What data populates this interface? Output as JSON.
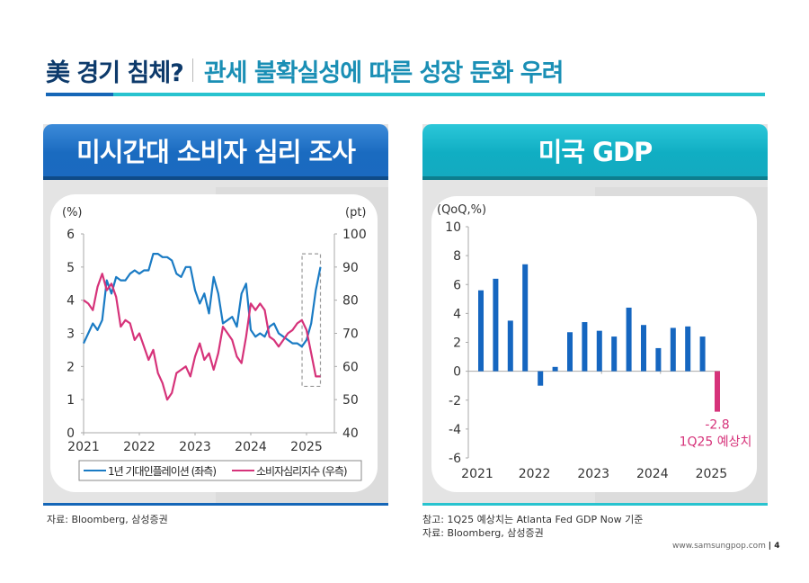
{
  "header": {
    "title_main": "美 경기 침체?",
    "title_sub": "관세 불확실성에 따른 성장 둔화 우려"
  },
  "colors": {
    "navy": "#0d3a6b",
    "teal": "#1a8fb5",
    "blue_line": "#1a7bc4",
    "pink_line": "#d6337a",
    "bar_blue": "#1566c0",
    "bar_pink": "#d6337a"
  },
  "panels": [
    {
      "title": "미시간대 소비자 심리 조사",
      "source": "자료: Bloomberg, 삼성증권"
    },
    {
      "title": "미국 GDP",
      "note": "참고: 1Q25 예상치는 Atlanta Fed GDP Now 기준",
      "source": "자료: Bloomberg, 삼성증권"
    }
  ],
  "footer": {
    "url": "www.samsungpop.com",
    "page": "4"
  },
  "chart_data": [
    {
      "type": "line",
      "title": "미시간대 소비자 심리 조사",
      "y_left_unit": "(%)",
      "y_right_unit": "(pt)",
      "ylim_left": [
        0,
        6
      ],
      "ylim_right": [
        40,
        100
      ],
      "yticks_left": [
        "0",
        "1",
        "2",
        "3",
        "4",
        "5",
        "6"
      ],
      "yticks_right": [
        "40",
        "50",
        "60",
        "70",
        "80",
        "90",
        "100"
      ],
      "xlim": [
        2021.0,
        2025.75
      ],
      "xticks": [
        "2021",
        "2022",
        "2023",
        "2024",
        "2025"
      ],
      "grid": false,
      "highlight_box": {
        "x_range": [
          2024.92,
          2025.25
        ],
        "y_right_range": [
          54,
          94
        ],
        "style": "dashed"
      },
      "legend": {
        "position": "bottom",
        "entries": [
          "1년 기대인플레이션 (좌측)",
          "소비자심리지수 (우측)"
        ]
      },
      "series": [
        {
          "name": "1년 기대인플레이션 (좌측)",
          "axis": "left",
          "color": "#1a7bc4",
          "start": 2021.0,
          "step_months": 1,
          "values": [
            2.7,
            3.0,
            3.3,
            3.1,
            3.4,
            4.6,
            4.2,
            4.7,
            4.6,
            4.6,
            4.8,
            4.9,
            4.8,
            4.9,
            4.9,
            5.4,
            5.4,
            5.3,
            5.3,
            5.2,
            4.8,
            4.7,
            5.0,
            5.0,
            4.3,
            3.9,
            4.2,
            3.6,
            4.7,
            4.2,
            3.3,
            3.4,
            3.5,
            3.2,
            4.2,
            4.5,
            3.1,
            2.9,
            3.0,
            2.9,
            3.2,
            3.3,
            3.0,
            2.9,
            2.8,
            2.7,
            2.7,
            2.6,
            2.8,
            3.3,
            4.3,
            5.0
          ]
        },
        {
          "name": "소비자심리지수 (우측)",
          "axis": "right",
          "color": "#d6337a",
          "start": 2021.0,
          "step_months": 1,
          "values": [
            80,
            79,
            77,
            84,
            88,
            83,
            85,
            81,
            72,
            74,
            73,
            68,
            70,
            66,
            62,
            65,
            58,
            55,
            50,
            52,
            58,
            59,
            60,
            57,
            63,
            67,
            62,
            64,
            59,
            64,
            72,
            70,
            68,
            63,
            61,
            69,
            79,
            77,
            79,
            77,
            69,
            68,
            66,
            68,
            70,
            71,
            73,
            74,
            71,
            64,
            57,
            57
          ]
        }
      ]
    },
    {
      "type": "bar",
      "title": "미국 GDP",
      "ylabel": "(QoQ,%)",
      "ylim": [
        -6,
        10
      ],
      "yticks": [
        "-6",
        "-4",
        "-2",
        "0",
        "2",
        "4",
        "6",
        "8",
        "10"
      ],
      "xticks": [
        "2021",
        "2022",
        "2023",
        "2024",
        "2025"
      ],
      "grid": false,
      "categories": [
        "1Q21",
        "2Q21",
        "3Q21",
        "4Q21",
        "1Q22",
        "2Q22",
        "3Q22",
        "4Q22",
        "1Q23",
        "2Q23",
        "3Q23",
        "4Q23",
        "1Q24",
        "2Q24",
        "3Q24",
        "4Q24",
        "1Q25E"
      ],
      "values": [
        5.6,
        6.4,
        3.5,
        7.4,
        -1.0,
        0.3,
        2.7,
        3.4,
        2.8,
        2.4,
        4.4,
        3.2,
        1.6,
        3.0,
        3.1,
        2.4,
        -2.8
      ],
      "highlight": {
        "category": "1Q25E",
        "color": "#d6337a",
        "label_value": "-2.8",
        "label_text": "1Q25 예상치"
      }
    }
  ]
}
